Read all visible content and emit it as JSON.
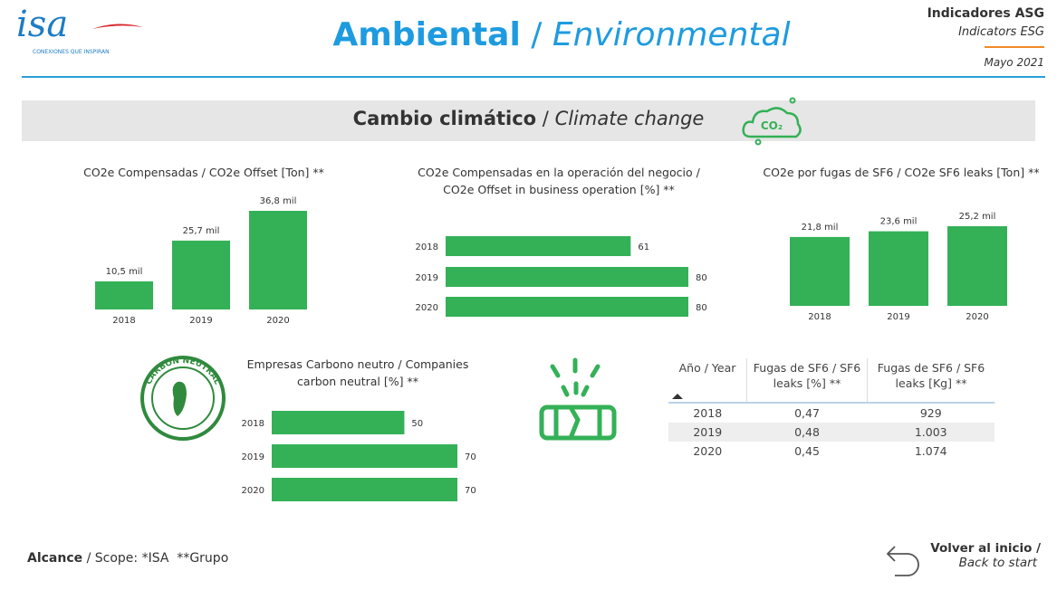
{
  "header": {
    "logo_text": "isa",
    "logo_tagline": "CONEXIONES QUE INSPIRAN",
    "title": "Ambiental",
    "title_separator": "/",
    "title_en": "Environmental",
    "indicators": "Indicadores ASG",
    "indicators_en": "Indicators ESG",
    "date": "Mayo 2021"
  },
  "section": {
    "title": "Cambio climático",
    "separator": "/",
    "title_en": "Climate change",
    "icon_label": "CO₂"
  },
  "chart_data": [
    {
      "type": "bar",
      "orientation": "vertical",
      "title": "CO2e Compensadas / CO2e Offset [Ton] **",
      "categories": [
        "2018",
        "2019",
        "2020"
      ],
      "values": [
        10500,
        25700,
        36800
      ],
      "value_labels": [
        "10,5 mil",
        "25,7 mil",
        "36,8 mil"
      ],
      "color": "#34b157"
    },
    {
      "type": "bar",
      "orientation": "horizontal",
      "title": "CO2e Compensadas en la operación del negocio / CO2e Offset in business operation [%] **",
      "categories": [
        "2018",
        "2019",
        "2020"
      ],
      "values": [
        61,
        80,
        80
      ],
      "color": "#34b157"
    },
    {
      "type": "bar",
      "orientation": "vertical",
      "title": "CO2e por fugas de SF6 / CO2e SF6 leaks [Ton] **",
      "categories": [
        "2018",
        "2019",
        "2020"
      ],
      "values": [
        21800,
        23600,
        25200
      ],
      "value_labels": [
        "21,8 mil",
        "23,6 mil",
        "25,2 mil"
      ],
      "color": "#34b157"
    },
    {
      "type": "bar",
      "orientation": "horizontal",
      "title": "Empresas Carbono neutro / Companies carbon neutral [%] **",
      "categories": [
        "2018",
        "2019",
        "2020"
      ],
      "values": [
        50,
        70,
        70
      ],
      "color": "#34b157"
    }
  ],
  "table": {
    "columns": [
      "Año / Year",
      "Fugas de SF6 / SF6 leaks [%] **",
      "Fugas de SF6 / SF6 leaks [Kg] **"
    ],
    "rows": [
      [
        "2018",
        "0,47",
        "929"
      ],
      [
        "2019",
        "0,48",
        "1.003"
      ],
      [
        "2020",
        "0,45",
        "1.074"
      ]
    ]
  },
  "stamp": {
    "text": "CARBON NEUTRAL"
  },
  "footer": {
    "scope_label": "Alcance",
    "scope_text": "/ Scope: *ISA  **Grupo",
    "back": "Volver al inicio /",
    "back_en": "Back to start"
  }
}
